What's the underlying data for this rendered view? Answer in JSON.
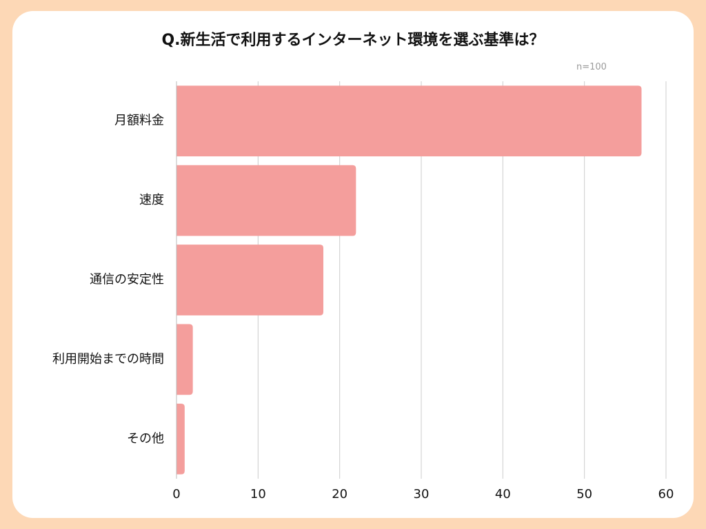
{
  "chart_data": {
    "type": "bar",
    "orientation": "horizontal",
    "title": "Q.新生活で利用するインターネット環境を選ぶ基準は？",
    "note": "n=100",
    "categories": [
      "月額料金",
      "速度",
      "通信の安定性",
      "利用開始までの時間",
      "その他"
    ],
    "values": [
      57,
      22,
      18,
      2,
      1
    ],
    "xlim": [
      0,
      60
    ],
    "xticks": [
      0,
      10,
      20,
      30,
      40,
      50,
      60
    ],
    "grid": true,
    "bar_color": "#f49e9c",
    "grid_color": "#cccccc"
  }
}
